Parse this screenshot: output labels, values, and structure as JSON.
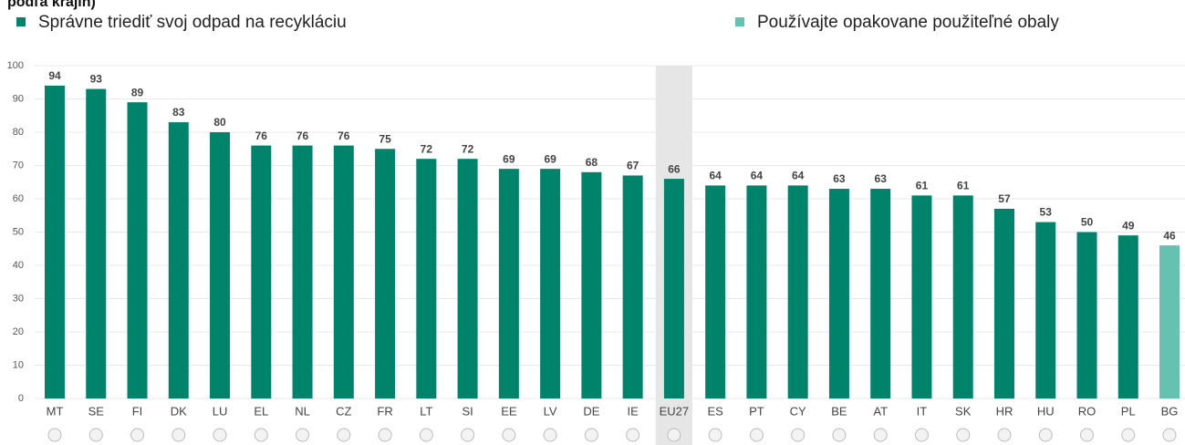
{
  "chart_data": {
    "type": "bar",
    "title": "podľa krajín)",
    "legend": [
      {
        "name": "Správne triediť svoj odpad na recykláciu",
        "color": "#00836b"
      },
      {
        "name": "Používajte opakovane použiteľné obaly",
        "color": "#66c2b0"
      }
    ],
    "categories": [
      "MT",
      "SE",
      "FI",
      "DK",
      "LU",
      "EL",
      "NL",
      "CZ",
      "FR",
      "LT",
      "SI",
      "EE",
      "LV",
      "DE",
      "IE",
      "EU27",
      "ES",
      "PT",
      "CY",
      "BE",
      "AT",
      "IT",
      "SK",
      "HR",
      "HU",
      "RO",
      "PL",
      "BG"
    ],
    "values": [
      94,
      93,
      89,
      83,
      80,
      76,
      76,
      76,
      75,
      72,
      72,
      69,
      69,
      68,
      67,
      66,
      64,
      64,
      64,
      63,
      63,
      61,
      61,
      57,
      53,
      50,
      49,
      46
    ],
    "colors": [
      "#00836b",
      "#00836b",
      "#00836b",
      "#00836b",
      "#00836b",
      "#00836b",
      "#00836b",
      "#00836b",
      "#00836b",
      "#00836b",
      "#00836b",
      "#00836b",
      "#00836b",
      "#00836b",
      "#00836b",
      "#00836b",
      "#00836b",
      "#00836b",
      "#00836b",
      "#00836b",
      "#00836b",
      "#00836b",
      "#00836b",
      "#00836b",
      "#00836b",
      "#00836b",
      "#00836b",
      "#66c2b0"
    ],
    "ylim": [
      0,
      100
    ],
    "yticks": [
      0,
      10,
      20,
      30,
      40,
      50,
      60,
      70,
      80,
      90,
      100
    ],
    "grid": true
  }
}
